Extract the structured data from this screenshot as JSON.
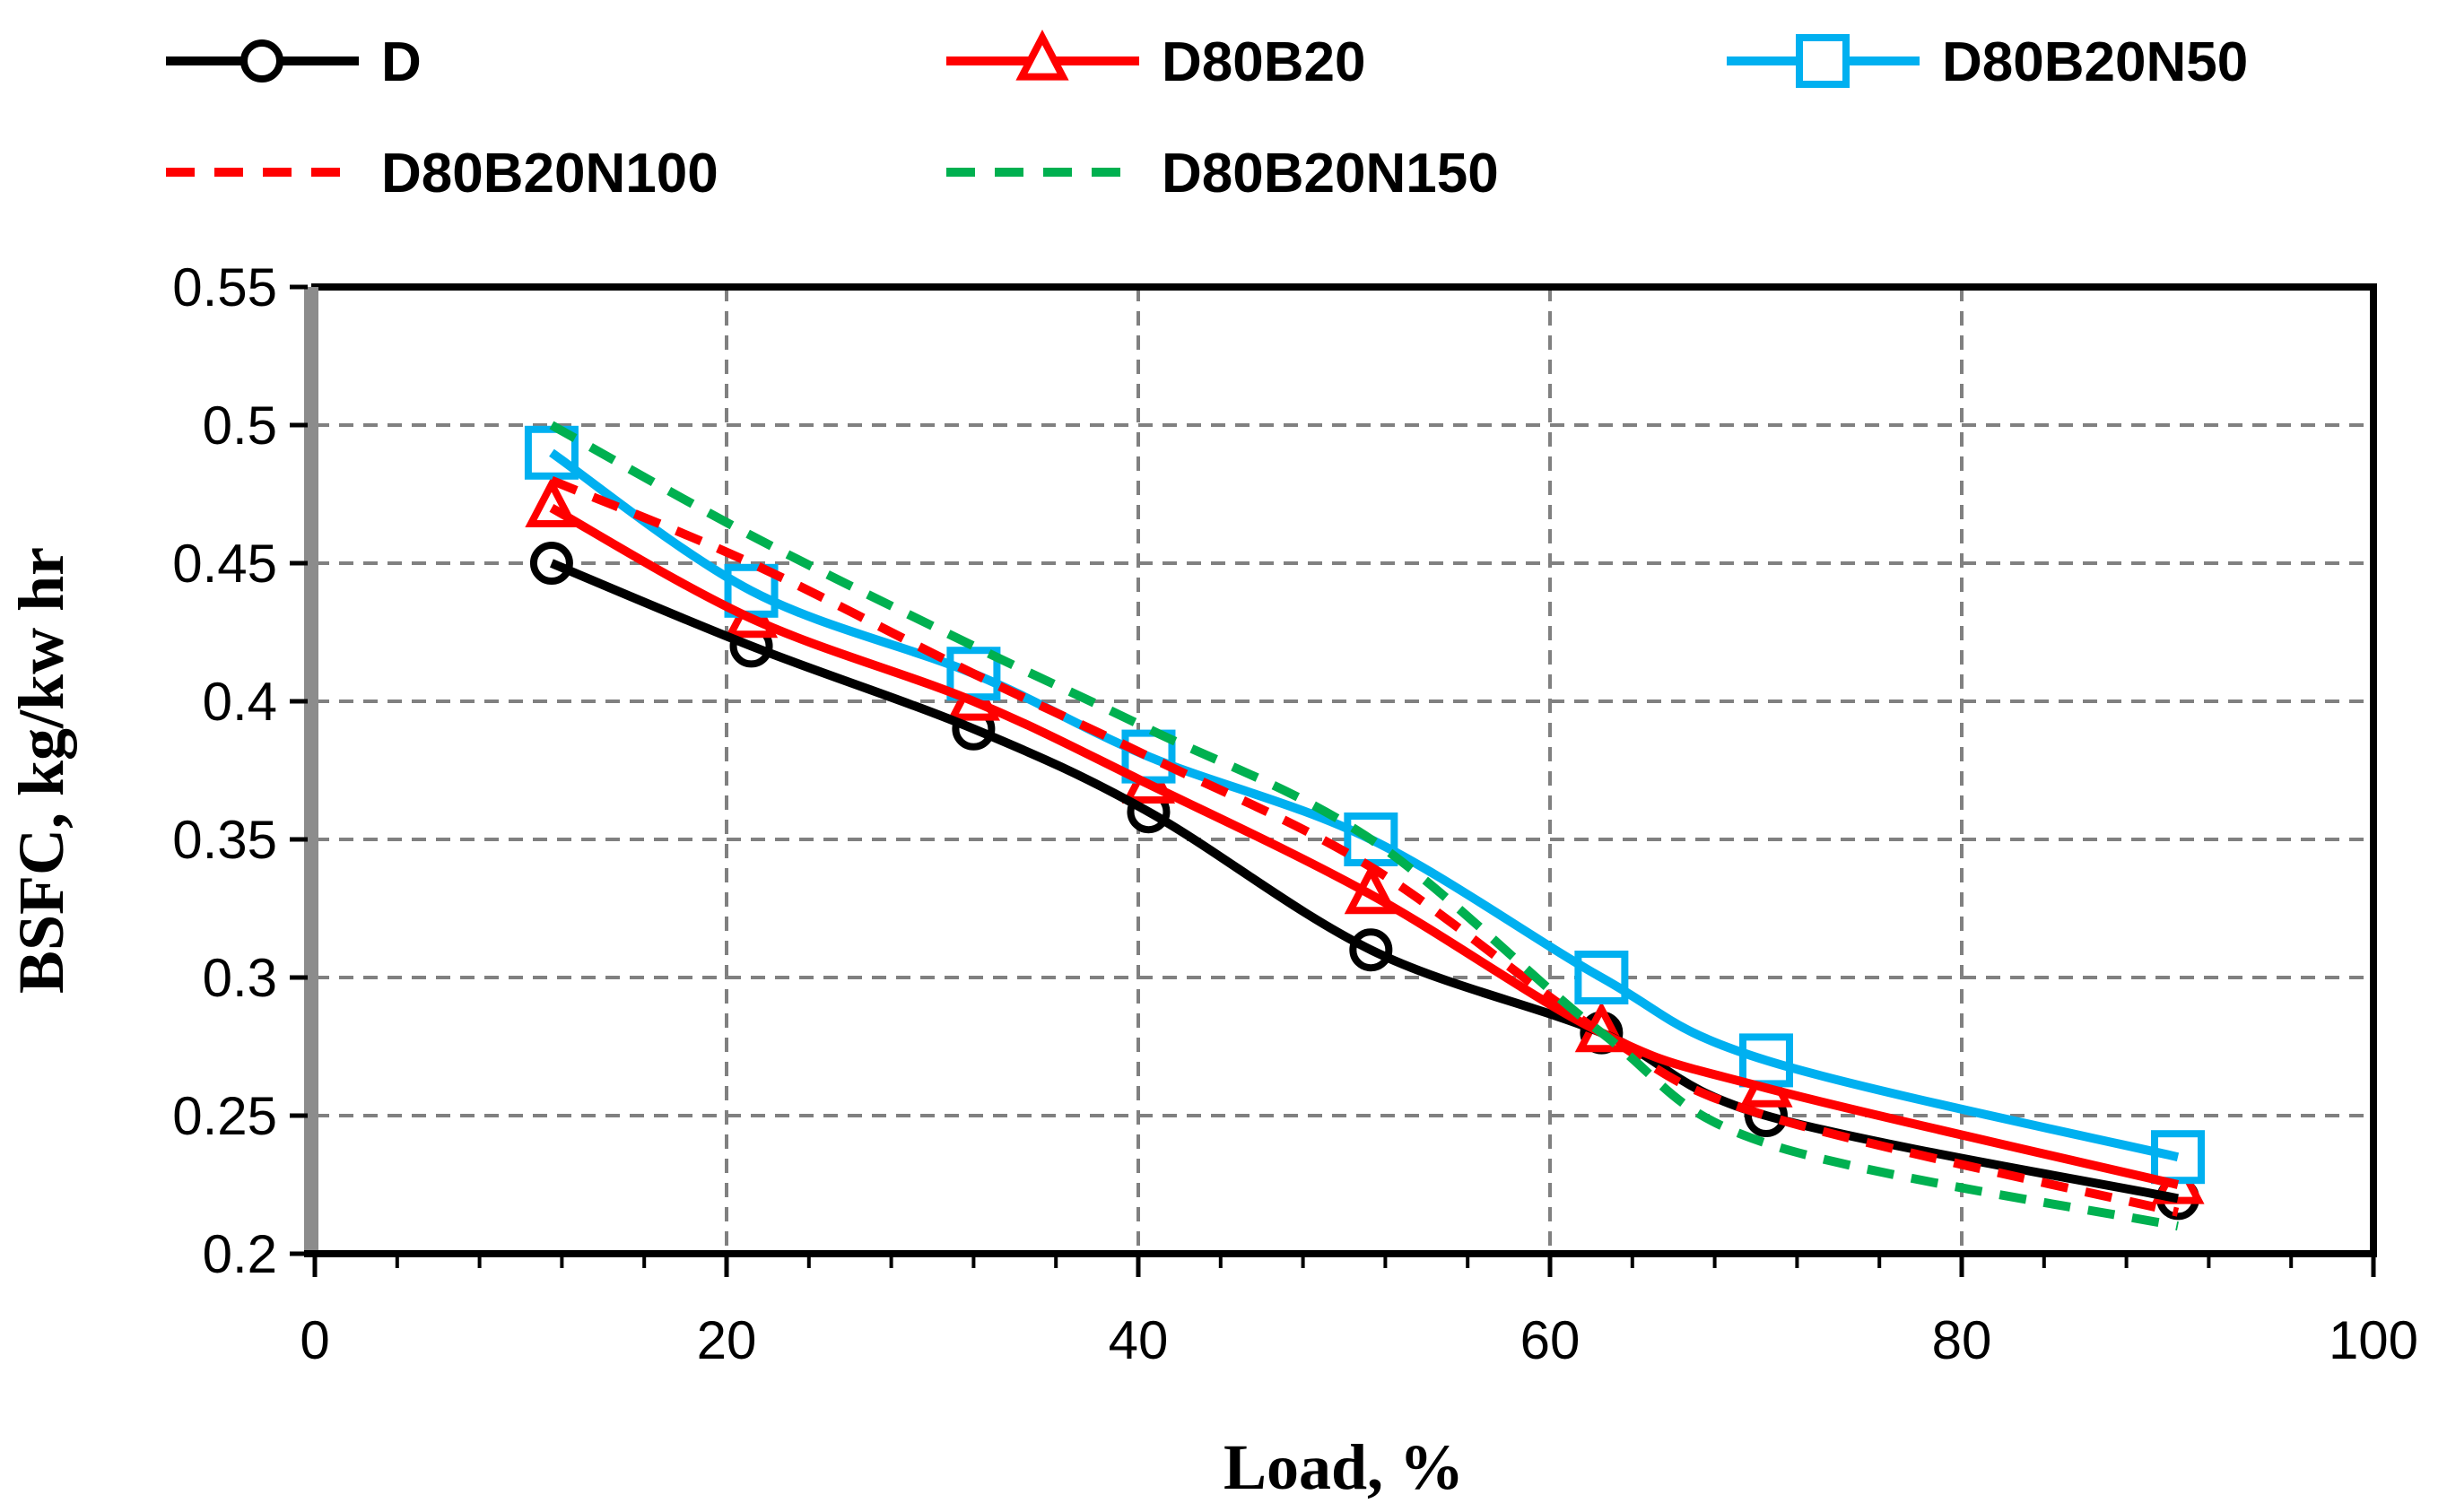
{
  "chart_data": {
    "type": "line",
    "title": "",
    "xlabel": "Load, %",
    "ylabel": "BSFC, kg/kw hr",
    "xlim": [
      0,
      100
    ],
    "ylim": [
      0.2,
      0.55
    ],
    "xticks": [
      0,
      20,
      40,
      60,
      80,
      100
    ],
    "yticks": [
      0.2,
      0.25,
      0.3,
      0.35,
      0.4,
      0.45,
      0.5,
      0.55
    ],
    "ytick_labels": [
      "0.2",
      "0.25",
      "0.3",
      "0.35",
      "0.4",
      "0.45",
      "0.5",
      "0.55"
    ],
    "grid": true,
    "legend_position": "top",
    "series": [
      {
        "name": "D",
        "color": "#000000",
        "dash": "solid",
        "marker": "circle",
        "x": [
          11.5,
          21.2,
          32.0,
          40.5,
          51.3,
          62.5,
          70.5,
          90.5
        ],
        "y": [
          0.45,
          0.42,
          0.39,
          0.36,
          0.31,
          0.28,
          0.25,
          0.22
        ]
      },
      {
        "name": "D80B20",
        "color": "#ff0000",
        "dash": "solid",
        "marker": "triangle",
        "x": [
          11.5,
          21.2,
          32.0,
          40.5,
          51.3,
          62.5,
          70.5,
          90.5
        ],
        "y": [
          0.47,
          0.43,
          0.4,
          0.37,
          0.33,
          0.28,
          0.26,
          0.225
        ]
      },
      {
        "name": "D80B20N50",
        "color": "#00b0f0",
        "dash": "solid",
        "marker": "square",
        "x": [
          11.5,
          21.2,
          32.0,
          40.5,
          51.3,
          62.5,
          70.5,
          90.5
        ],
        "y": [
          0.49,
          0.44,
          0.41,
          0.38,
          0.35,
          0.3,
          0.27,
          0.235
        ]
      },
      {
        "name": "D80B20N100",
        "color": "#ff0000",
        "dash": "dashed",
        "marker": "none",
        "x": [
          11.5,
          21.2,
          32.0,
          40.5,
          51.3,
          62.5,
          70.5,
          90.5
        ],
        "y": [
          0.48,
          0.45,
          0.41,
          0.38,
          0.34,
          0.28,
          0.25,
          0.215
        ]
      },
      {
        "name": "D80B20N150",
        "color": "#00b050",
        "dash": "dashed",
        "marker": "none",
        "x": [
          11.5,
          21.2,
          32.0,
          40.5,
          51.3,
          62.5,
          70.5,
          90.5
        ],
        "y": [
          0.5,
          0.46,
          0.42,
          0.39,
          0.35,
          0.28,
          0.24,
          0.21
        ]
      }
    ]
  }
}
